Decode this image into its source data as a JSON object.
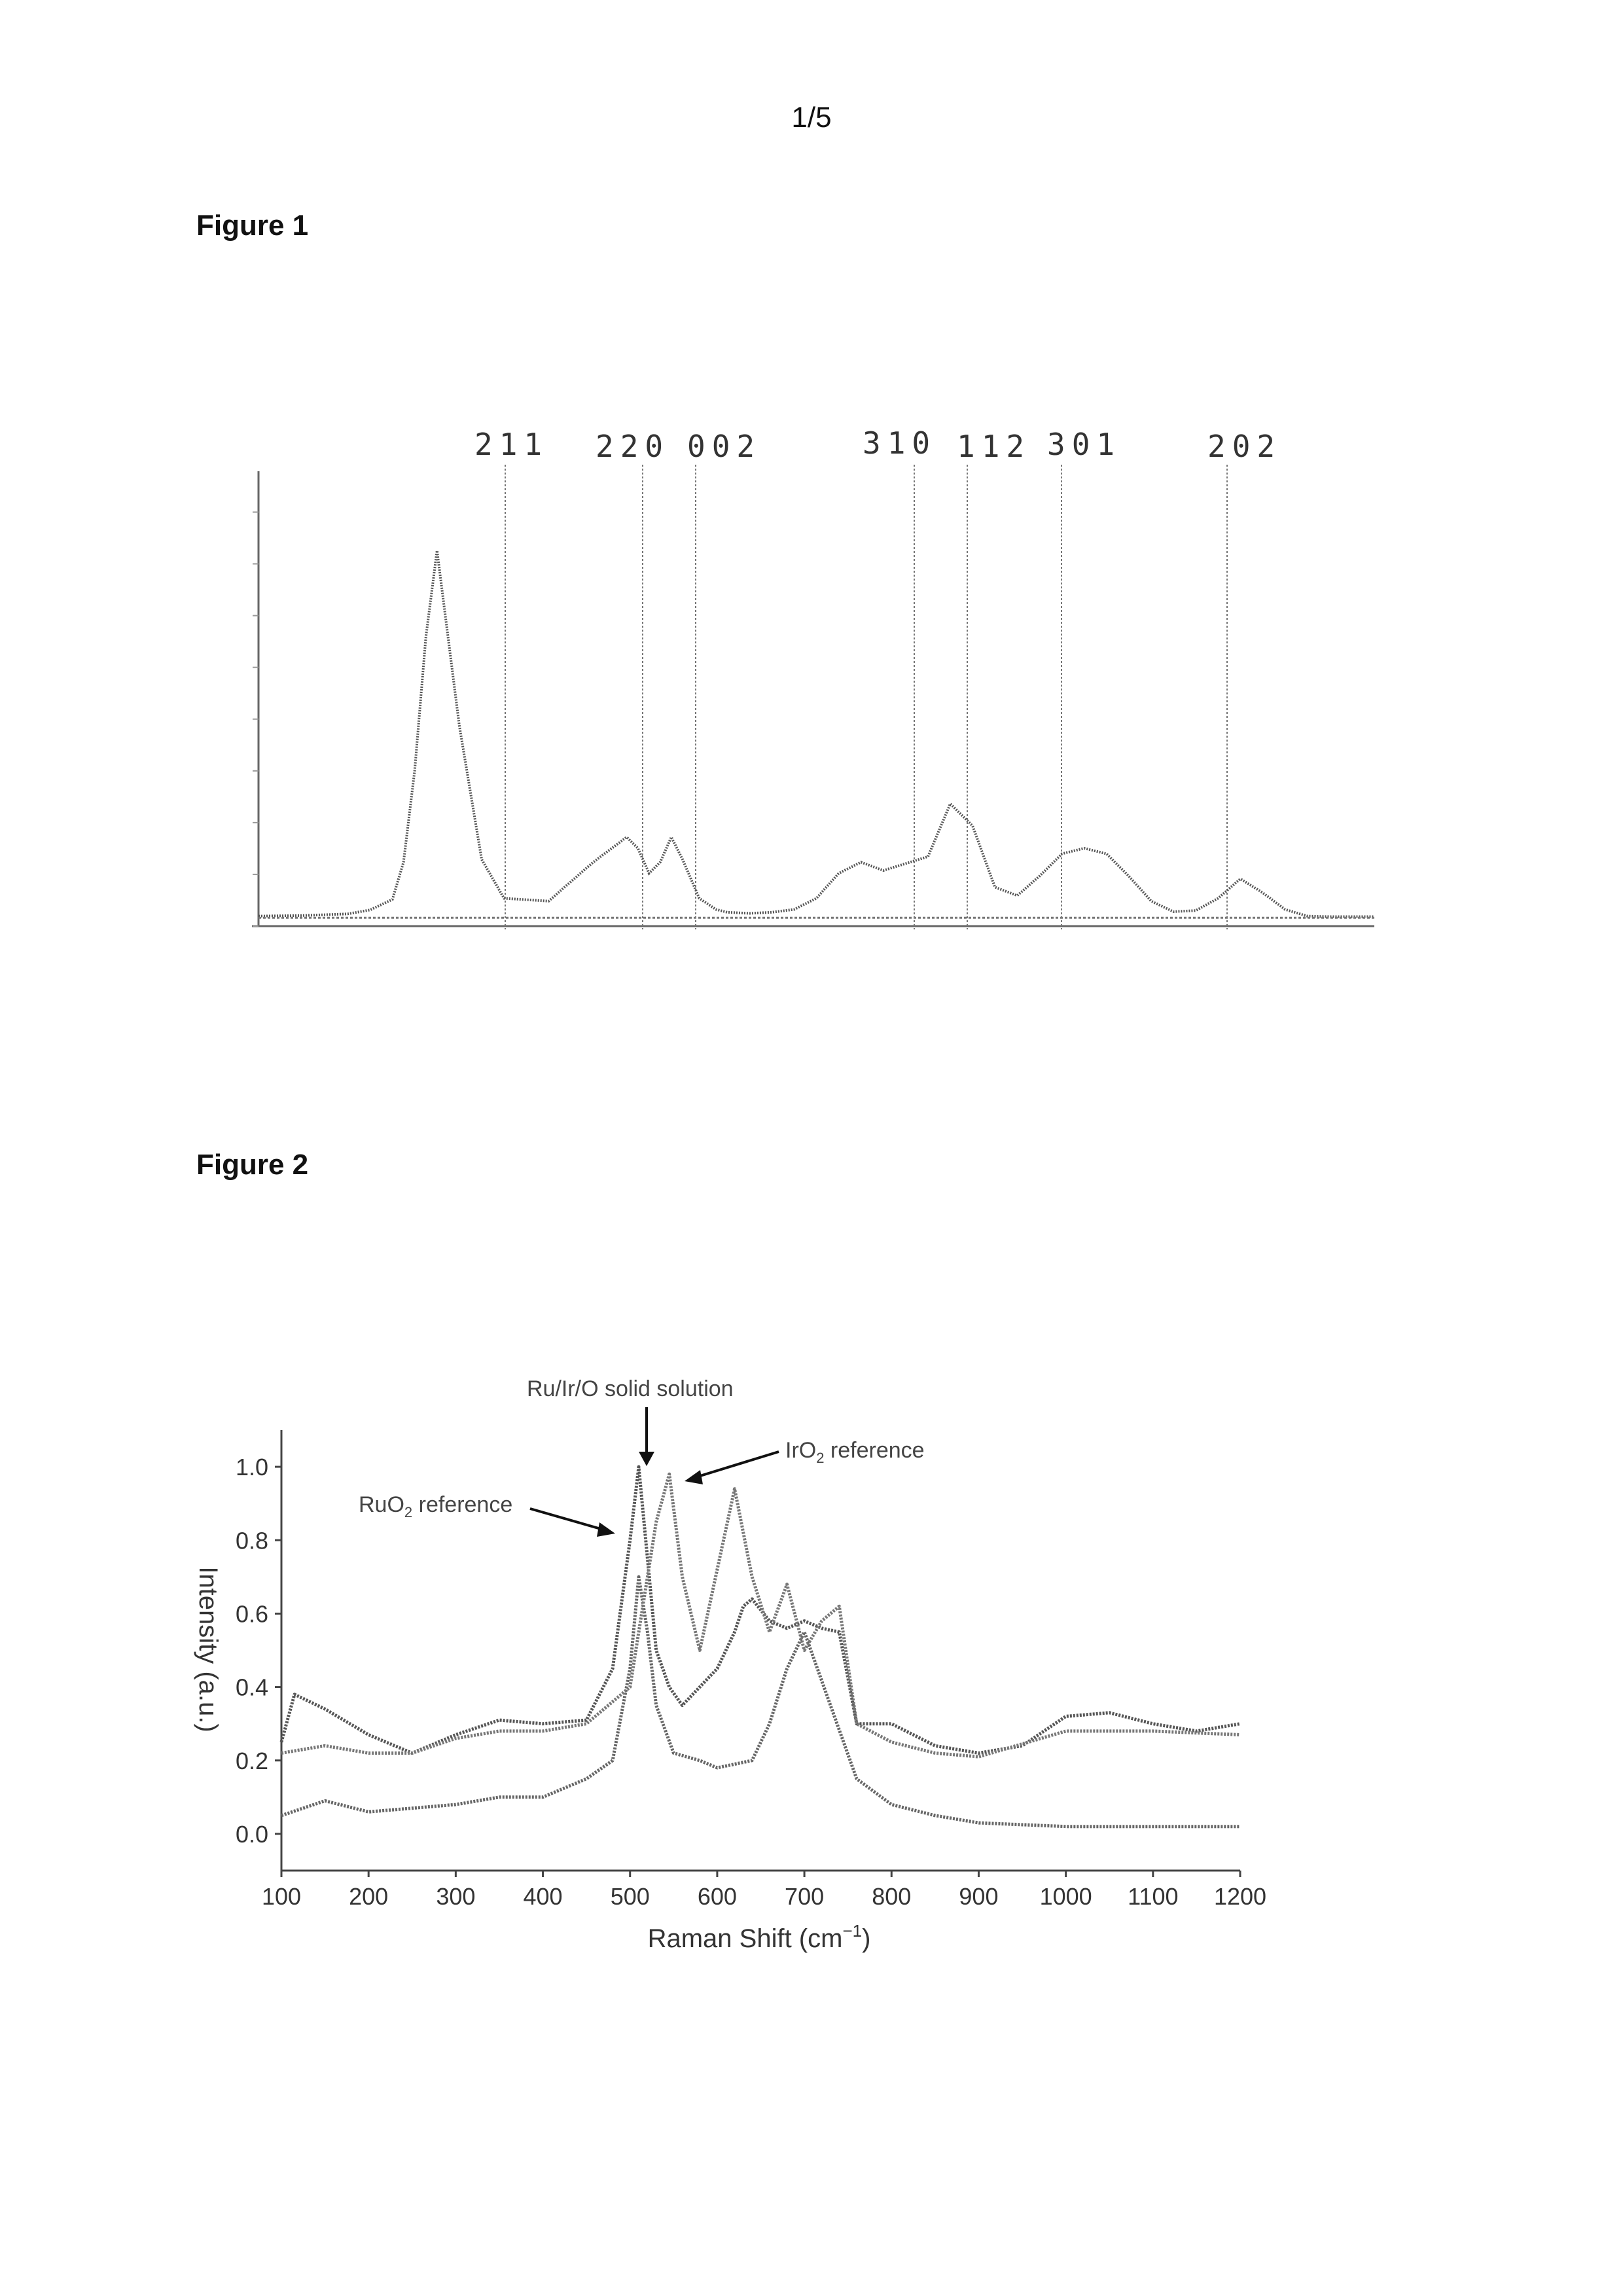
{
  "page": {
    "number": "1/5"
  },
  "figure1": {
    "title": "Figure 1",
    "peak_labels": [
      "211",
      "220",
      "002",
      "310",
      "112",
      "301",
      "202"
    ]
  },
  "figure2": {
    "title": "Figure 2",
    "annotations": {
      "solid_solution": "Ru/Ir/O solid solution",
      "iro2_main": "IrO",
      "iro2_sub": "2",
      "iro2_tail": " reference",
      "ruo2_main": "RuO",
      "ruo2_sub": "2",
      "ruo2_tail": " reference"
    },
    "ylabel": "Intensity (a.u.)",
    "xlabel_main": "Raman Shift (cm",
    "xlabel_sup": "−1",
    "xlabel_close": ")"
  },
  "chart_data": [
    {
      "type": "line",
      "title": "Figure 1",
      "series": [
        {
          "x": [
            0,
            40,
            80,
            100,
            120,
            130,
            140,
            150,
            160,
            180,
            200,
            220,
            260,
            300,
            330,
            340,
            350,
            360,
            370,
            380,
            395,
            410,
            420,
            440,
            460,
            480,
            500,
            520,
            540,
            560,
            600,
            620,
            640,
            660,
            680,
            700,
            720,
            740,
            760,
            780,
            800,
            820,
            840,
            860,
            880,
            900,
            920,
            940,
            960,
            980,
            1000
          ],
          "values": [
            180,
            190,
            220,
            290,
            480,
            1150,
            2800,
            5200,
            6750,
            3600,
            1200,
            500,
            450,
            1150,
            1600,
            1400,
            950,
            1150,
            1600,
            1200,
            500,
            300,
            250,
            230,
            250,
            300,
            500,
            950,
            1150,
            1000,
            1250,
            2200,
            1800,
            700,
            550,
            900,
            1300,
            1400,
            1300,
            900,
            450,
            260,
            280,
            500,
            850,
            600,
            300,
            180,
            170,
            170,
            170
          ]
        }
      ],
      "peak_labels": [
        "211",
        "220",
        "002",
        "310",
        "112",
        "301",
        "202"
      ]
    },
    {
      "type": "line",
      "title": "",
      "xlabel": "Raman Shift (cm−1)",
      "ylabel": "Intensity (a.u.)",
      "xlim": [
        100,
        1200
      ],
      "ylim": [
        -0.1,
        1.1
      ],
      "x_ticks": [
        100,
        200,
        300,
        400,
        500,
        600,
        700,
        800,
        900,
        1000,
        1100,
        1200
      ],
      "y_ticks": [
        "0.0",
        "0.2",
        "0.4",
        "0.6",
        "0.8",
        "1.0"
      ],
      "series": [
        {
          "name": "RuO2 reference",
          "x": [
            100,
            150,
            200,
            250,
            300,
            350,
            400,
            450,
            480,
            500,
            510,
            520,
            530,
            550,
            580,
            600,
            640,
            660,
            680,
            700,
            730,
            760,
            800,
            850,
            900,
            1000,
            1100,
            1200
          ],
          "values": [
            0.05,
            0.09,
            0.06,
            0.07,
            0.08,
            0.1,
            0.1,
            0.15,
            0.2,
            0.45,
            0.7,
            0.55,
            0.35,
            0.22,
            0.2,
            0.18,
            0.2,
            0.3,
            0.45,
            0.55,
            0.35,
            0.15,
            0.08,
            0.05,
            0.03,
            0.02,
            0.02,
            0.02
          ]
        },
        {
          "name": "Ru/Ir/O solid solution",
          "x": [
            100,
            115,
            150,
            200,
            250,
            300,
            350,
            400,
            450,
            480,
            500,
            510,
            520,
            530,
            545,
            560,
            600,
            620,
            630,
            640,
            660,
            680,
            700,
            720,
            740,
            760,
            800,
            850,
            900,
            950,
            1000,
            1050,
            1100,
            1150,
            1200
          ],
          "values": [
            0.25,
            0.38,
            0.34,
            0.27,
            0.22,
            0.27,
            0.31,
            0.3,
            0.31,
            0.45,
            0.8,
            1.0,
            0.75,
            0.5,
            0.4,
            0.35,
            0.45,
            0.55,
            0.62,
            0.64,
            0.58,
            0.56,
            0.58,
            0.56,
            0.55,
            0.3,
            0.3,
            0.24,
            0.22,
            0.24,
            0.32,
            0.33,
            0.3,
            0.28,
            0.3
          ]
        },
        {
          "name": "IrO2 reference",
          "x": [
            100,
            150,
            200,
            250,
            300,
            350,
            400,
            450,
            500,
            520,
            530,
            545,
            560,
            580,
            600,
            620,
            640,
            660,
            680,
            700,
            720,
            740,
            760,
            800,
            850,
            900,
            1000,
            1100,
            1200
          ],
          "values": [
            0.22,
            0.24,
            0.22,
            0.22,
            0.26,
            0.28,
            0.28,
            0.3,
            0.4,
            0.7,
            0.85,
            0.98,
            0.7,
            0.5,
            0.72,
            0.94,
            0.7,
            0.55,
            0.68,
            0.5,
            0.58,
            0.62,
            0.3,
            0.25,
            0.22,
            0.21,
            0.28,
            0.28,
            0.27
          ]
        }
      ]
    }
  ]
}
